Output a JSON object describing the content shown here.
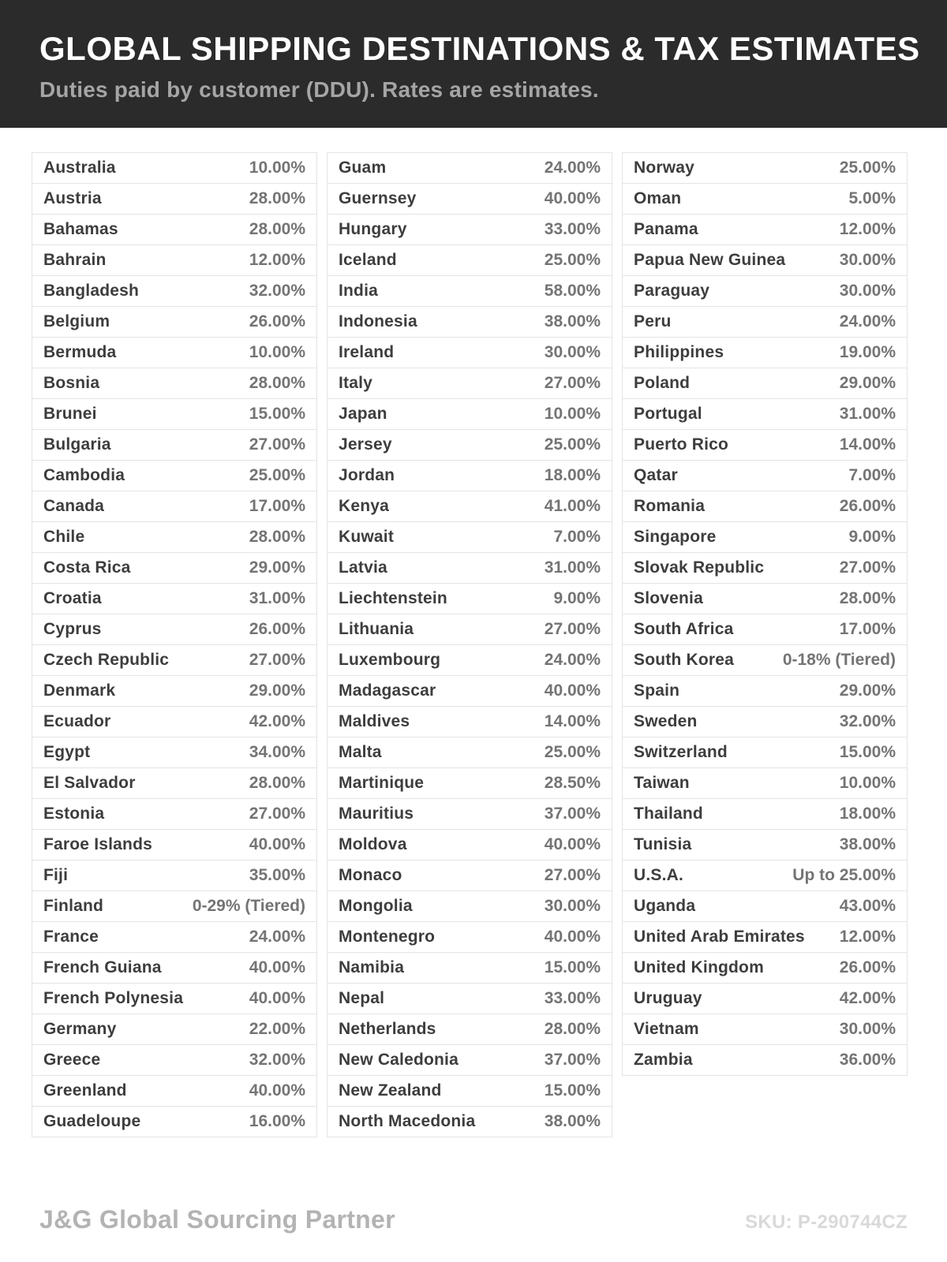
{
  "header": {
    "title": "GLOBAL SHIPPING DESTINATIONS & TAX ESTIMATES",
    "subtitle": "Duties paid by customer (DDU). Rates are estimates."
  },
  "table": {
    "columns": [
      {
        "rows": [
          {
            "country": "Australia",
            "rate": "10.00%"
          },
          {
            "country": "Austria",
            "rate": "28.00%"
          },
          {
            "country": "Bahamas",
            "rate": "28.00%"
          },
          {
            "country": "Bahrain",
            "rate": "12.00%"
          },
          {
            "country": "Bangladesh",
            "rate": "32.00%"
          },
          {
            "country": "Belgium",
            "rate": "26.00%"
          },
          {
            "country": "Bermuda",
            "rate": "10.00%"
          },
          {
            "country": "Bosnia",
            "rate": "28.00%"
          },
          {
            "country": "Brunei",
            "rate": "15.00%"
          },
          {
            "country": "Bulgaria",
            "rate": "27.00%"
          },
          {
            "country": "Cambodia",
            "rate": "25.00%"
          },
          {
            "country": "Canada",
            "rate": "17.00%"
          },
          {
            "country": "Chile",
            "rate": "28.00%"
          },
          {
            "country": "Costa Rica",
            "rate": "29.00%"
          },
          {
            "country": "Croatia",
            "rate": "31.00%"
          },
          {
            "country": "Cyprus",
            "rate": "26.00%"
          },
          {
            "country": "Czech Republic",
            "rate": "27.00%"
          },
          {
            "country": "Denmark",
            "rate": "29.00%"
          },
          {
            "country": "Ecuador",
            "rate": "42.00%"
          },
          {
            "country": "Egypt",
            "rate": "34.00%"
          },
          {
            "country": "El Salvador",
            "rate": "28.00%"
          },
          {
            "country": "Estonia",
            "rate": "27.00%"
          },
          {
            "country": "Faroe Islands",
            "rate": "40.00%"
          },
          {
            "country": "Fiji",
            "rate": "35.00%"
          },
          {
            "country": "Finland",
            "rate": "0-29% (Tiered)"
          },
          {
            "country": "France",
            "rate": "24.00%"
          },
          {
            "country": "French Guiana",
            "rate": "40.00%"
          },
          {
            "country": "French Polynesia",
            "rate": "40.00%"
          },
          {
            "country": "Germany",
            "rate": "22.00%"
          },
          {
            "country": "Greece",
            "rate": "32.00%"
          },
          {
            "country": "Greenland",
            "rate": "40.00%"
          },
          {
            "country": "Guadeloupe",
            "rate": "16.00%"
          }
        ]
      },
      {
        "rows": [
          {
            "country": "Guam",
            "rate": "24.00%"
          },
          {
            "country": "Guernsey",
            "rate": "40.00%"
          },
          {
            "country": "Hungary",
            "rate": "33.00%"
          },
          {
            "country": "Iceland",
            "rate": "25.00%"
          },
          {
            "country": "India",
            "rate": "58.00%"
          },
          {
            "country": "Indonesia",
            "rate": "38.00%"
          },
          {
            "country": "Ireland",
            "rate": "30.00%"
          },
          {
            "country": "Italy",
            "rate": "27.00%"
          },
          {
            "country": "Japan",
            "rate": "10.00%"
          },
          {
            "country": "Jersey",
            "rate": "25.00%"
          },
          {
            "country": "Jordan",
            "rate": "18.00%"
          },
          {
            "country": "Kenya",
            "rate": "41.00%"
          },
          {
            "country": "Kuwait",
            "rate": "7.00%"
          },
          {
            "country": "Latvia",
            "rate": "31.00%"
          },
          {
            "country": "Liechtenstein",
            "rate": "9.00%"
          },
          {
            "country": "Lithuania",
            "rate": "27.00%"
          },
          {
            "country": "Luxembourg",
            "rate": "24.00%"
          },
          {
            "country": "Madagascar",
            "rate": "40.00%"
          },
          {
            "country": "Maldives",
            "rate": "14.00%"
          },
          {
            "country": "Malta",
            "rate": "25.00%"
          },
          {
            "country": "Martinique",
            "rate": "28.50%"
          },
          {
            "country": "Mauritius",
            "rate": "37.00%"
          },
          {
            "country": "Moldova",
            "rate": "40.00%"
          },
          {
            "country": "Monaco",
            "rate": "27.00%"
          },
          {
            "country": "Mongolia",
            "rate": "30.00%"
          },
          {
            "country": "Montenegro",
            "rate": "40.00%"
          },
          {
            "country": "Namibia",
            "rate": "15.00%"
          },
          {
            "country": "Nepal",
            "rate": "33.00%"
          },
          {
            "country": "Netherlands",
            "rate": "28.00%"
          },
          {
            "country": "New Caledonia",
            "rate": "37.00%"
          },
          {
            "country": "New Zealand",
            "rate": "15.00%"
          },
          {
            "country": "North Macedonia",
            "rate": "38.00%"
          }
        ]
      },
      {
        "rows": [
          {
            "country": "Norway",
            "rate": "25.00%"
          },
          {
            "country": "Oman",
            "rate": "5.00%"
          },
          {
            "country": "Panama",
            "rate": "12.00%"
          },
          {
            "country": "Papua New Guinea",
            "rate": "30.00%"
          },
          {
            "country": "Paraguay",
            "rate": "30.00%"
          },
          {
            "country": "Peru",
            "rate": "24.00%"
          },
          {
            "country": "Philippines",
            "rate": "19.00%"
          },
          {
            "country": "Poland",
            "rate": "29.00%"
          },
          {
            "country": "Portugal",
            "rate": "31.00%"
          },
          {
            "country": "Puerto Rico",
            "rate": "14.00%"
          },
          {
            "country": "Qatar",
            "rate": "7.00%"
          },
          {
            "country": "Romania",
            "rate": "26.00%"
          },
          {
            "country": "Singapore",
            "rate": "9.00%"
          },
          {
            "country": "Slovak Republic",
            "rate": "27.00%"
          },
          {
            "country": "Slovenia",
            "rate": "28.00%"
          },
          {
            "country": "South Africa",
            "rate": "17.00%"
          },
          {
            "country": "South Korea",
            "rate": "0-18% (Tiered)"
          },
          {
            "country": "Spain",
            "rate": "29.00%"
          },
          {
            "country": "Sweden",
            "rate": "32.00%"
          },
          {
            "country": "Switzerland",
            "rate": "15.00%"
          },
          {
            "country": "Taiwan",
            "rate": "10.00%"
          },
          {
            "country": "Thailand",
            "rate": "18.00%"
          },
          {
            "country": "Tunisia",
            "rate": "38.00%"
          },
          {
            "country": "U.S.A.",
            "rate": "Up to 25.00%"
          },
          {
            "country": "Uganda",
            "rate": "43.00%"
          },
          {
            "country": "United Arab Emirates",
            "rate": "12.00%"
          },
          {
            "country": "United Kingdom",
            "rate": "26.00%"
          },
          {
            "country": "Uruguay",
            "rate": "42.00%"
          },
          {
            "country": "Vietnam",
            "rate": "30.00%"
          },
          {
            "country": "Zambia",
            "rate": "36.00%"
          }
        ]
      }
    ]
  },
  "footer": {
    "brand": "J&G Global Sourcing Partner",
    "sku": "SKU: P-290744CZ"
  },
  "colors": {
    "header_bg": "#2b2b2b",
    "title_text": "#ffffff",
    "subtitle_text": "#a5a5a5",
    "country_text": "#3d3d3d",
    "rate_text": "#747474",
    "row_border": "#e4e4e4",
    "footer_brand_text": "#b3b3b3",
    "sku_text": "#d9d9d9"
  }
}
